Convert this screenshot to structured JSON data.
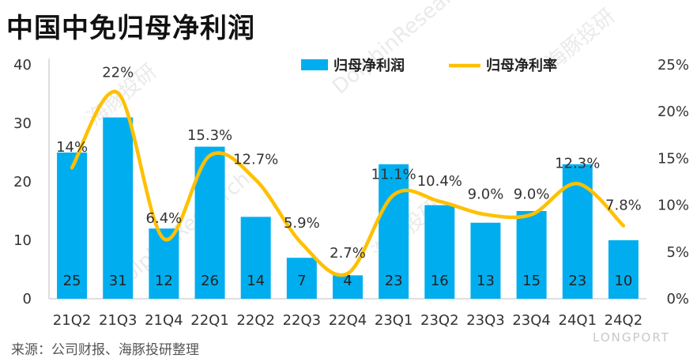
{
  "title": "中国中免归母净利润",
  "source": "来源：公司财报、海豚投研整理",
  "colors": {
    "bar": "#00AEEF",
    "line": "#FFC000"
  },
  "chart_data": {
    "type": "bar",
    "categories": [
      "21Q2",
      "21Q3",
      "21Q4",
      "22Q1",
      "22Q2",
      "22Q3",
      "22Q4",
      "23Q1",
      "23Q2",
      "23Q3",
      "23Q4",
      "24Q1",
      "24Q2"
    ],
    "series": [
      {
        "name": "归母净利润",
        "type": "bar",
        "axis": "left",
        "values": [
          25,
          31,
          12,
          26,
          14,
          7,
          4,
          23,
          16,
          13,
          15,
          23,
          10
        ],
        "labels": [
          "25",
          "31",
          "12",
          "26",
          "14",
          "7",
          "4",
          "23",
          "16",
          "13",
          "15",
          "23",
          "10"
        ]
      },
      {
        "name": "归母净利率",
        "type": "line",
        "axis": "right",
        "values": [
          14,
          22,
          6.4,
          15.3,
          12.7,
          5.9,
          2.7,
          11.1,
          10.4,
          9.0,
          9.0,
          12.3,
          7.8
        ],
        "labels": [
          "14%",
          "22%",
          "6.4%",
          "15.3%",
          "12.7%",
          "5.9%",
          "2.7%",
          "11.1%",
          "10.4%",
          "9.0%",
          "9.0%",
          "12.3%",
          "7.8%"
        ]
      }
    ],
    "y_left": {
      "lim": [
        0,
        40
      ],
      "ticks": [
        "0",
        "10",
        "20",
        "30",
        "40"
      ]
    },
    "y_right": {
      "lim": [
        0,
        25
      ],
      "ticks": [
        "0%",
        "5%",
        "10%",
        "15%",
        "20%",
        "25%"
      ]
    },
    "legend": "top-right",
    "grid": false
  },
  "watermarks": [
    "海豚投研",
    "DolphinResearch"
  ],
  "brand": "LONGPORT"
}
